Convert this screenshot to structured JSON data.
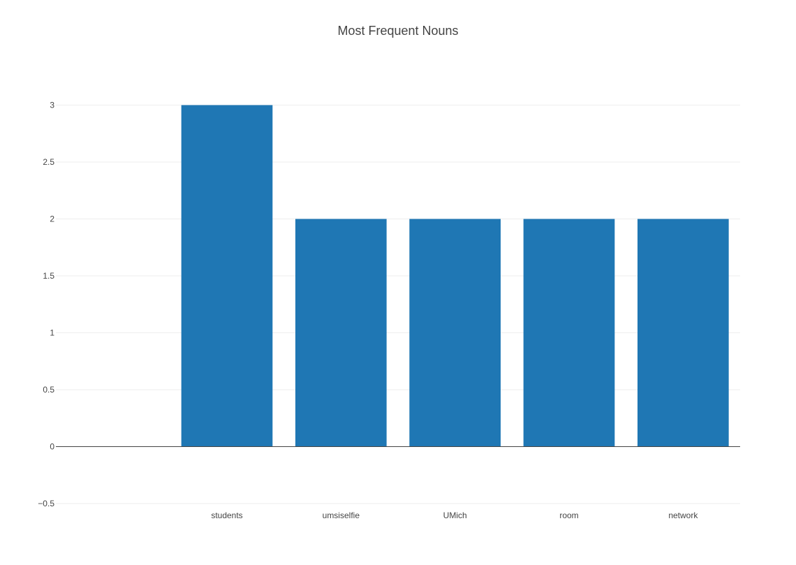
{
  "chart_data": {
    "type": "bar",
    "title": "Most Frequent Nouns",
    "xlabel": "",
    "ylabel": "",
    "categories": [
      "students",
      "umsiselfie",
      "UMich",
      "room",
      "network"
    ],
    "values": [
      3,
      2,
      2,
      2,
      2
    ],
    "ylim": [
      -0.5,
      3.5
    ],
    "yticks": [
      -0.5,
      0,
      0.5,
      1,
      1.5,
      2,
      2.5,
      3
    ],
    "ytick_labels": [
      "−0.5",
      "0",
      "0.5",
      "1",
      "1.5",
      "2",
      "2.5",
      "3"
    ],
    "grid": true,
    "legend": "none",
    "colors": {
      "bar": "#1f77b4",
      "grid": "#eeeeee",
      "zeroline": "#444444",
      "text": "#444444"
    }
  }
}
